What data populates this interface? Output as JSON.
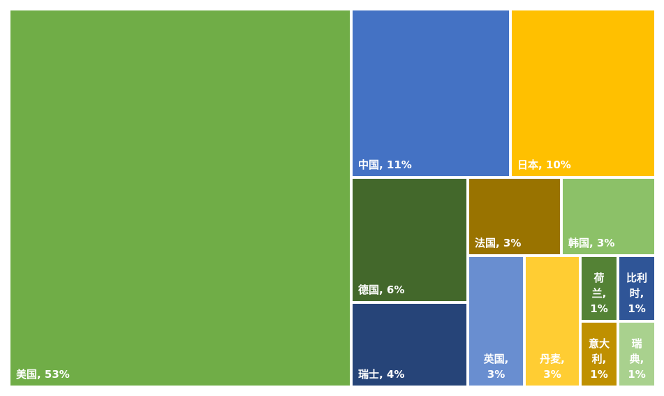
{
  "chart_data": {
    "type": "treemap",
    "title": "",
    "items": [
      {
        "name": "美国",
        "value": 53,
        "label": "美国, 53%",
        "color": "#70AD47"
      },
      {
        "name": "中国",
        "value": 11,
        "label": "中国, 11%",
        "color": "#4472C4"
      },
      {
        "name": "日本",
        "value": 10,
        "label": "日本, 10%",
        "color": "#FFC000"
      },
      {
        "name": "德国",
        "value": 6,
        "label": "德国, 6%",
        "color": "#43682B"
      },
      {
        "name": "瑞士",
        "value": 4,
        "label": "瑞士, 4%",
        "color": "#264478"
      },
      {
        "name": "法国",
        "value": 3,
        "label": "法国, 3%",
        "color": "#997300"
      },
      {
        "name": "韩国",
        "value": 3,
        "label": "韩国, 3%",
        "color": "#8CC168"
      },
      {
        "name": "英国",
        "value": 3,
        "label": "英国,\n3%",
        "color": "#698ED0"
      },
      {
        "name": "丹麦",
        "value": 3,
        "label": "丹麦,\n3%",
        "color": "#FFCD33"
      },
      {
        "name": "荷兰",
        "value": 1,
        "label": "荷\n兰,\n1%",
        "color": "#548235"
      },
      {
        "name": "比利时",
        "value": 1,
        "label": "比利\n时,\n1%",
        "color": "#2F5597"
      },
      {
        "name": "意大利",
        "value": 1,
        "label": "意大\n利,\n1%",
        "color": "#BF9000"
      },
      {
        "name": "瑞典",
        "value": 1,
        "label": "瑞\n典,\n1%",
        "color": "#A9D18E"
      }
    ]
  }
}
